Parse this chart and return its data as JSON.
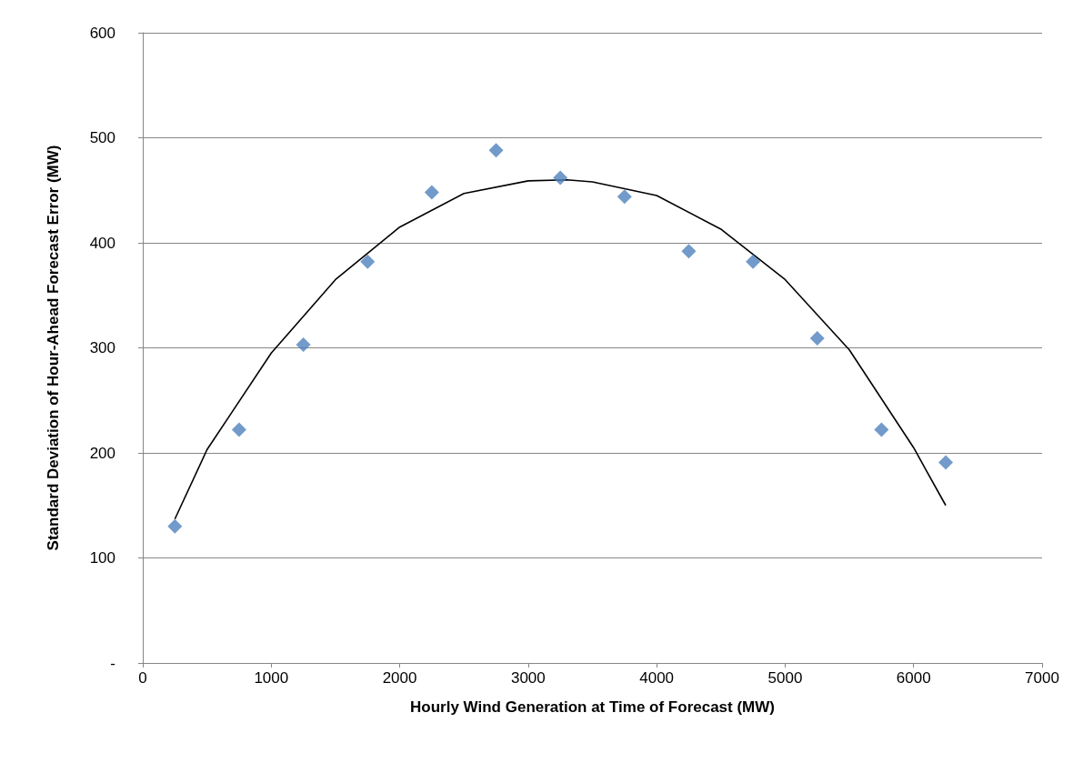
{
  "chart_data": {
    "type": "scatter",
    "xlabel": "Hourly Wind Generation at Time of Forecast (MW)",
    "ylabel": "Standard Deviation of Hour-Ahead Forecast Error (MW)",
    "xlim": [
      0,
      7000
    ],
    "xticks": [
      0,
      1000,
      2000,
      3000,
      4000,
      5000,
      6000,
      7000
    ],
    "ylim": [
      0,
      600
    ],
    "yticks": [
      {
        "value": 0,
        "label": "-"
      },
      100,
      200,
      300,
      400,
      500,
      600
    ],
    "grid": "y",
    "marker": "diamond",
    "series": [
      {
        "type": "scatter",
        "color": "#4f81bd",
        "x": [
          250,
          750,
          1250,
          1750,
          2250,
          2750,
          3250,
          3750,
          4250,
          4750,
          5250,
          5750,
          6250
        ],
        "values": [
          130,
          222,
          303,
          382,
          448,
          488,
          462,
          444,
          392,
          382,
          309,
          222,
          191
        ]
      },
      {
        "type": "line",
        "color": "#000000",
        "marker": "none",
        "line_style": "solid",
        "x": [
          250,
          500,
          1000,
          1500,
          2000,
          2500,
          3000,
          3300,
          3500,
          4000,
          4500,
          5000,
          5500,
          6000,
          6250
        ],
        "values": [
          137,
          203,
          295,
          365,
          415,
          447,
          459,
          460,
          458,
          445,
          413,
          365,
          298,
          205,
          150
        ]
      }
    ]
  }
}
